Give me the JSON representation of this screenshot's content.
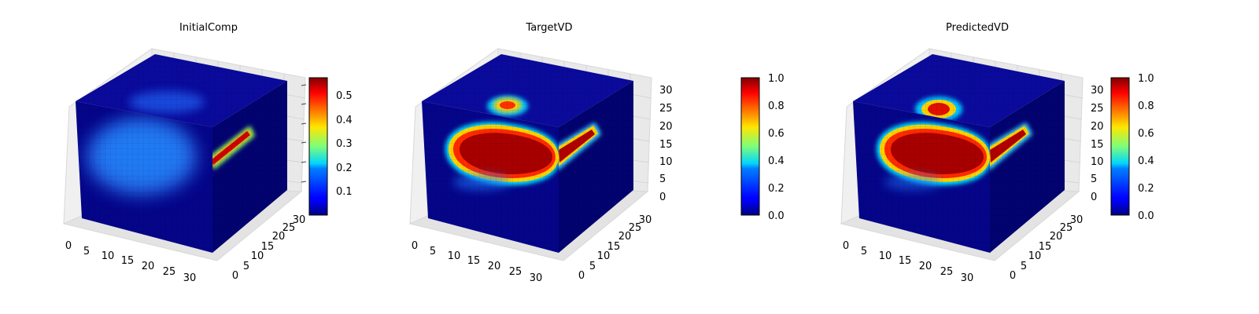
{
  "chart_data": [
    {
      "type": "heatmap",
      "title": "InitialComp",
      "x_ticks": [
        "0",
        "5",
        "10",
        "15",
        "20",
        "25",
        "30"
      ],
      "y_ticks": [
        "0",
        "5",
        "10",
        "15",
        "20",
        "25",
        "30"
      ],
      "z_ticks": [],
      "colorbar": {
        "range": [
          0.02,
          0.57
        ],
        "ticks": [
          "0.1",
          "0.2",
          "0.3",
          "0.4",
          "0.5"
        ],
        "tick_values": [
          0.1,
          0.2,
          0.3,
          0.4,
          0.5
        ]
      }
    },
    {
      "type": "heatmap",
      "title": "TargetVD",
      "x_ticks": [
        "0",
        "5",
        "10",
        "15",
        "20",
        "25",
        "30"
      ],
      "y_ticks": [
        "0",
        "5",
        "10",
        "15",
        "20",
        "25",
        "30"
      ],
      "z_ticks": [
        "0",
        "5",
        "10",
        "15",
        "20",
        "25",
        "30"
      ],
      "colorbar": {
        "range": [
          0.0,
          1.0
        ],
        "ticks": [
          "0.0",
          "0.2",
          "0.4",
          "0.6",
          "0.8",
          "1.0"
        ],
        "tick_values": [
          0.0,
          0.2,
          0.4,
          0.6,
          0.8,
          1.0
        ]
      }
    },
    {
      "type": "heatmap",
      "title": "PredictedVD",
      "x_ticks": [
        "0",
        "5",
        "10",
        "15",
        "20",
        "25",
        "30"
      ],
      "y_ticks": [
        "0",
        "5",
        "10",
        "15",
        "20",
        "25",
        "30"
      ],
      "z_ticks": [
        "0",
        "5",
        "10",
        "15",
        "20",
        "25",
        "30"
      ],
      "colorbar": {
        "range": [
          0.0,
          1.0
        ],
        "ticks": [
          "0.0",
          "0.2",
          "0.4",
          "0.6",
          "0.8",
          "1.0"
        ],
        "tick_values": [
          0.0,
          0.2,
          0.4,
          0.6,
          0.8,
          1.0
        ]
      }
    }
  ]
}
